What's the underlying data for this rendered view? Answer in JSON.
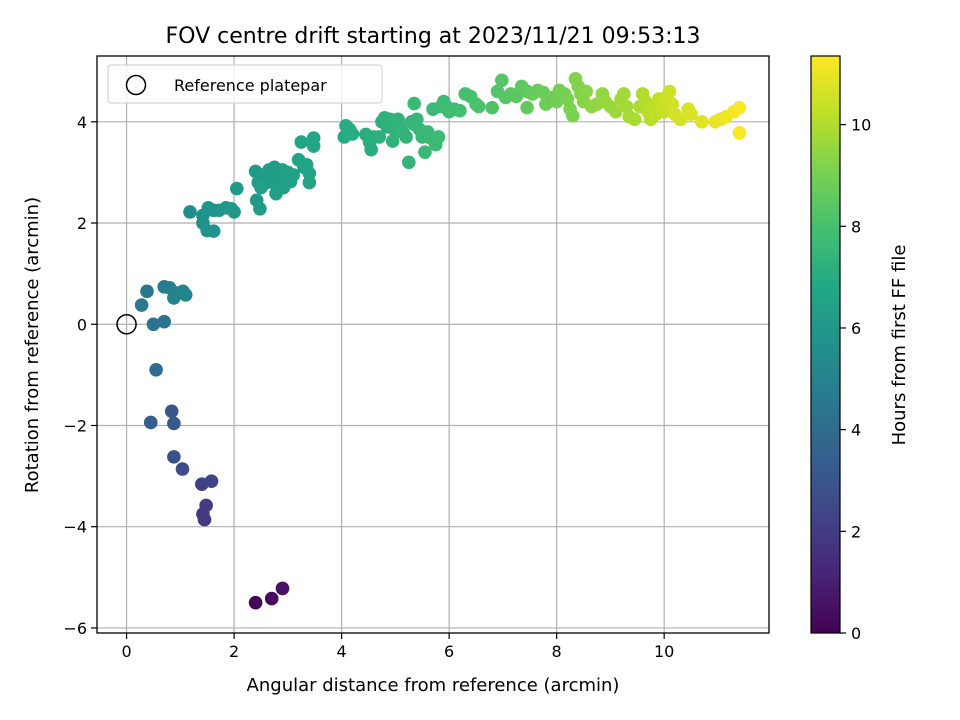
{
  "chart_data": {
    "type": "scatter",
    "title": "FOV centre drift starting at 2023/11/21 09:53:13",
    "xlabel": "Angular distance from reference (arcmin)",
    "ylabel": "Rotation from reference (arcmin)",
    "xlim": [
      -0.55,
      11.95
    ],
    "ylim": [
      -6.1,
      5.3
    ],
    "xticks": [
      0,
      2,
      4,
      6,
      8,
      10
    ],
    "xtick_labels": [
      "0",
      "2",
      "4",
      "6",
      "8",
      "10"
    ],
    "yticks": [
      -6,
      -4,
      -2,
      0,
      2,
      4
    ],
    "ytick_labels": [
      "−6",
      "−4",
      "−2",
      "0",
      "2",
      "4"
    ],
    "grid": true,
    "legend": {
      "location": "top-left",
      "entries": [
        "Reference platepar"
      ]
    },
    "reference_point": {
      "x": 0,
      "y": 0,
      "label": "Reference platepar"
    },
    "colorbar": {
      "label": "Hours from first FF file",
      "colormap": "viridis",
      "range": [
        0,
        11.35
      ],
      "ticks": [
        0,
        2,
        4,
        6,
        8,
        10
      ],
      "tick_labels": [
        "0",
        "2",
        "4",
        "6",
        "8",
        "10"
      ]
    },
    "series": [
      {
        "name": "FOV centre drift",
        "columns": [
          "x",
          "y",
          "hours"
        ],
        "points": [
          [
            2.4,
            -5.5,
            0.1
          ],
          [
            2.7,
            -5.42,
            0.3
          ],
          [
            2.9,
            -5.22,
            0.5
          ],
          [
            1.42,
            -3.75,
            1.8
          ],
          [
            1.45,
            -3.86,
            1.9
          ],
          [
            1.48,
            -3.58,
            2.0
          ],
          [
            1.4,
            -3.16,
            2.2
          ],
          [
            1.58,
            -3.1,
            2.3
          ],
          [
            1.04,
            -2.86,
            2.6
          ],
          [
            0.88,
            -2.62,
            2.8
          ],
          [
            0.84,
            -1.72,
            3.1
          ],
          [
            0.88,
            -1.96,
            3.2
          ],
          [
            0.45,
            -1.94,
            3.4
          ],
          [
            0.55,
            -0.9,
            4.0
          ],
          [
            0.5,
            0.0,
            4.3
          ],
          [
            0.7,
            0.05,
            4.4
          ],
          [
            0.38,
            0.65,
            4.5
          ],
          [
            0.28,
            0.38,
            4.6
          ],
          [
            0.7,
            0.74,
            4.7
          ],
          [
            0.8,
            0.72,
            4.8
          ],
          [
            0.92,
            0.62,
            4.9
          ],
          [
            0.88,
            0.52,
            5.0
          ],
          [
            1.1,
            0.58,
            5.1
          ],
          [
            1.05,
            0.65,
            5.15
          ],
          [
            1.18,
            2.22,
            5.5
          ],
          [
            1.42,
            2.0,
            5.6
          ],
          [
            1.42,
            2.15,
            5.65
          ],
          [
            1.5,
            1.85,
            5.7
          ],
          [
            1.62,
            1.84,
            5.75
          ],
          [
            1.52,
            2.3,
            5.8
          ],
          [
            1.62,
            2.25,
            5.85
          ],
          [
            1.72,
            2.25,
            5.9
          ],
          [
            1.85,
            2.3,
            5.95
          ],
          [
            1.95,
            2.28,
            6.0
          ],
          [
            2.0,
            2.22,
            6.05
          ],
          [
            2.42,
            2.45,
            6.05
          ],
          [
            2.48,
            2.28,
            6.1
          ],
          [
            2.05,
            2.68,
            6.1
          ],
          [
            2.4,
            3.02,
            6.15
          ],
          [
            2.45,
            2.8,
            6.15
          ],
          [
            2.55,
            2.95,
            6.2
          ],
          [
            2.6,
            2.8,
            6.2
          ],
          [
            2.65,
            3.05,
            6.22
          ],
          [
            2.7,
            2.88,
            6.25
          ],
          [
            2.75,
            3.1,
            6.25
          ],
          [
            2.78,
            2.75,
            6.28
          ],
          [
            2.82,
            2.95,
            6.3
          ],
          [
            2.85,
            2.8,
            6.3
          ],
          [
            2.9,
            3.05,
            6.32
          ],
          [
            2.92,
            2.7,
            6.35
          ],
          [
            2.95,
            2.9,
            6.35
          ],
          [
            3.0,
            3.0,
            6.38
          ],
          [
            3.05,
            2.82,
            6.4
          ],
          [
            2.78,
            2.58,
            6.4
          ],
          [
            2.5,
            2.7,
            6.42
          ],
          [
            3.1,
            2.95,
            6.45
          ],
          [
            3.2,
            3.25,
            6.5
          ],
          [
            3.3,
            3.1,
            6.55
          ],
          [
            3.4,
            2.98,
            6.58
          ],
          [
            3.35,
            3.15,
            6.6
          ],
          [
            3.4,
            2.8,
            6.62
          ],
          [
            3.25,
            3.6,
            6.65
          ],
          [
            3.48,
            3.52,
            6.7
          ],
          [
            3.48,
            3.68,
            6.72
          ],
          [
            4.05,
            3.7,
            6.9
          ],
          [
            4.08,
            3.92,
            6.95
          ],
          [
            4.15,
            3.85,
            7.0
          ],
          [
            4.2,
            3.76,
            7.0
          ],
          [
            4.45,
            3.75,
            7.05
          ],
          [
            4.52,
            3.6,
            7.08
          ],
          [
            4.55,
            3.45,
            7.1
          ],
          [
            4.6,
            3.7,
            7.12
          ],
          [
            4.7,
            3.7,
            7.15
          ],
          [
            4.75,
            4.0,
            7.18
          ],
          [
            4.8,
            4.08,
            7.2
          ],
          [
            4.85,
            3.9,
            7.22
          ],
          [
            4.9,
            4.05,
            7.25
          ],
          [
            4.95,
            3.62,
            7.28
          ],
          [
            5.0,
            3.82,
            7.3
          ],
          [
            5.05,
            4.05,
            7.32
          ],
          [
            5.1,
            3.9,
            7.35
          ],
          [
            5.15,
            3.78,
            7.38
          ],
          [
            5.2,
            3.7,
            7.4
          ],
          [
            5.25,
            3.2,
            7.42
          ],
          [
            5.3,
            4.0,
            7.45
          ],
          [
            5.35,
            3.95,
            7.48
          ],
          [
            5.4,
            4.05,
            7.5
          ],
          [
            5.45,
            3.85,
            7.52
          ],
          [
            5.5,
            3.7,
            7.55
          ],
          [
            5.55,
            3.4,
            7.58
          ],
          [
            5.6,
            3.8,
            7.6
          ],
          [
            5.65,
            3.68,
            7.62
          ],
          [
            5.7,
            4.25,
            7.65
          ],
          [
            5.35,
            4.36,
            7.65
          ],
          [
            5.75,
            3.55,
            7.68
          ],
          [
            5.8,
            3.7,
            7.7
          ],
          [
            5.85,
            4.3,
            7.72
          ],
          [
            5.9,
            4.4,
            7.75
          ],
          [
            5.95,
            4.3,
            7.78
          ],
          [
            6.0,
            4.2,
            7.8
          ],
          [
            6.1,
            4.25,
            7.85
          ],
          [
            6.2,
            4.22,
            7.9
          ],
          [
            6.3,
            4.55,
            7.95
          ],
          [
            6.4,
            4.5,
            8.0
          ],
          [
            6.5,
            4.35,
            8.05
          ],
          [
            6.55,
            4.3,
            8.1
          ],
          [
            6.8,
            4.28,
            8.2
          ],
          [
            6.9,
            4.6,
            8.25
          ],
          [
            6.98,
            4.82,
            8.3
          ],
          [
            7.05,
            4.48,
            8.35
          ],
          [
            7.15,
            4.55,
            8.4
          ],
          [
            7.25,
            4.5,
            8.45
          ],
          [
            7.35,
            4.7,
            8.5
          ],
          [
            7.45,
            4.6,
            8.55
          ],
          [
            7.45,
            4.28,
            8.6
          ],
          [
            7.55,
            4.55,
            8.65
          ],
          [
            7.65,
            4.62,
            8.7
          ],
          [
            7.75,
            4.58,
            8.75
          ],
          [
            7.8,
            4.35,
            8.8
          ],
          [
            7.9,
            4.48,
            8.85
          ],
          [
            8.0,
            4.4,
            8.9
          ],
          [
            8.05,
            4.62,
            8.95
          ],
          [
            8.15,
            4.55,
            9.0
          ],
          [
            8.2,
            4.45,
            9.05
          ],
          [
            8.25,
            4.25,
            9.1
          ],
          [
            8.3,
            4.12,
            9.12
          ],
          [
            8.35,
            4.85,
            9.15
          ],
          [
            8.4,
            4.7,
            9.2
          ],
          [
            8.45,
            4.55,
            9.25
          ],
          [
            8.5,
            4.4,
            9.3
          ],
          [
            8.55,
            4.6,
            9.35
          ],
          [
            8.65,
            4.3,
            9.4
          ],
          [
            8.75,
            4.35,
            9.45
          ],
          [
            8.85,
            4.55,
            9.5
          ],
          [
            8.9,
            4.4,
            9.55
          ],
          [
            9.0,
            4.3,
            9.6
          ],
          [
            9.1,
            4.2,
            9.65
          ],
          [
            9.2,
            4.45,
            9.7
          ],
          [
            9.25,
            4.55,
            9.75
          ],
          [
            9.3,
            4.3,
            9.8
          ],
          [
            9.35,
            4.1,
            9.85
          ],
          [
            9.45,
            4.05,
            9.9
          ],
          [
            9.55,
            4.3,
            9.95
          ],
          [
            9.6,
            4.55,
            10.0
          ],
          [
            9.65,
            4.4,
            10.05
          ],
          [
            9.7,
            4.2,
            10.1
          ],
          [
            9.75,
            4.05,
            10.15
          ],
          [
            9.8,
            4.3,
            10.2
          ],
          [
            9.85,
            4.15,
            10.25
          ],
          [
            9.9,
            4.45,
            10.3
          ],
          [
            9.95,
            4.35,
            10.35
          ],
          [
            10.0,
            4.2,
            10.4
          ],
          [
            10.05,
            4.5,
            10.45
          ],
          [
            10.1,
            4.6,
            10.5
          ],
          [
            10.15,
            4.35,
            10.55
          ],
          [
            10.2,
            4.15,
            10.6
          ],
          [
            10.3,
            4.05,
            10.65
          ],
          [
            10.45,
            4.25,
            10.7
          ],
          [
            10.5,
            4.15,
            10.75
          ],
          [
            10.7,
            4.0,
            10.85
          ],
          [
            10.95,
            4.0,
            10.95
          ],
          [
            11.05,
            4.05,
            11.0
          ],
          [
            11.15,
            4.1,
            11.1
          ],
          [
            11.3,
            4.2,
            11.2
          ],
          [
            11.4,
            4.28,
            11.3
          ],
          [
            11.4,
            3.78,
            11.35
          ]
        ]
      }
    ]
  }
}
